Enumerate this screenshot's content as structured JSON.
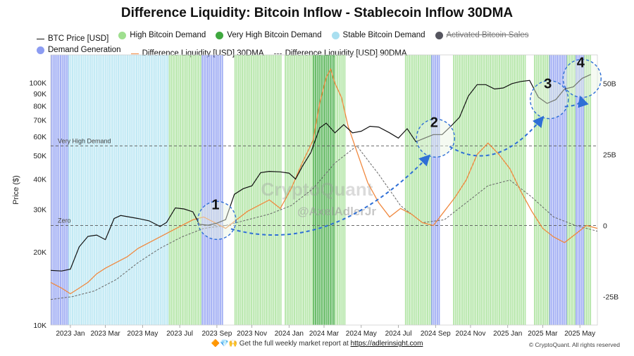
{
  "title": "Difference Liquidity: Bitcoin Inflow - Stablecoin Inflow 30DMA",
  "legend": [
    {
      "label": "BTC Price [USD]",
      "kind": "line",
      "color": "#111111"
    },
    {
      "label": "High Bitcoin Demand",
      "kind": "dot",
      "color": "#9fdf8f"
    },
    {
      "label": "Very High Bitcoin Demand",
      "kind": "dot",
      "color": "#3fa83f"
    },
    {
      "label": "Stable Bitcoin Demand",
      "kind": "dot",
      "color": "#a9dff0"
    },
    {
      "label": "Activated Bitcoin Sales",
      "kind": "dot",
      "color": "#55555f",
      "struck": true
    },
    {
      "label": "Demand Generation",
      "kind": "dot",
      "color": "#8c9cf2"
    },
    {
      "label": "Difference Liquidity [USD] 30DMA",
      "kind": "line",
      "color": "#f0883e"
    },
    {
      "label": "Difference Liquidity [USD] 90DMA",
      "kind": "dash",
      "color": "#666666"
    }
  ],
  "footer": {
    "icons": "🔶💎🙌",
    "text": "Get the full weekly market report at",
    "link": "https://adlerinsight.com"
  },
  "copyright": "© CryptoQuant. All rights reserved",
  "watermark": {
    "main": "CryptoQuant",
    "handle": "@AxelAdlerJr"
  },
  "chart_data": {
    "type": "line",
    "xlabel": "",
    "ylabel": "Price ($)",
    "y_scale": "log",
    "ylim": [
      10000,
      130000
    ],
    "y_ticks": [
      {
        "value": 10000,
        "label": "10K"
      },
      {
        "value": 20000,
        "label": "20K"
      },
      {
        "value": 30000,
        "label": "30K"
      },
      {
        "value": 40000,
        "label": "40K"
      },
      {
        "value": 50000,
        "label": "50K"
      },
      {
        "value": 60000,
        "label": "60K"
      },
      {
        "value": 70000,
        "label": "70K"
      },
      {
        "value": 80000,
        "label": "80K"
      },
      {
        "value": 90000,
        "label": "90K"
      },
      {
        "value": 100000,
        "label": "100K"
      }
    ],
    "y2_range": [
      -35,
      60
    ],
    "y2_ticks": [
      {
        "value": 50,
        "label": "50B"
      },
      {
        "value": 25,
        "label": "25B"
      },
      {
        "value": 0,
        "label": "0"
      },
      {
        "value": -25,
        "label": "-25B"
      }
    ],
    "x_range": [
      2022.95,
      2025.45
    ],
    "x_ticks": [
      {
        "value": 2023.04,
        "label": "2023 Jan"
      },
      {
        "value": 2023.2,
        "label": "2023 Mar"
      },
      {
        "value": 2023.37,
        "label": "2023 May"
      },
      {
        "value": 2023.54,
        "label": "2023 Jul"
      },
      {
        "value": 2023.71,
        "label": "2023 Sep"
      },
      {
        "value": 2023.87,
        "label": "2023 Nov"
      },
      {
        "value": 2024.04,
        "label": "2024 Jan"
      },
      {
        "value": 2024.2,
        "label": "2024 Mar"
      },
      {
        "value": 2024.37,
        "label": "2024 May"
      },
      {
        "value": 2024.54,
        "label": "2024 Jul"
      },
      {
        "value": 2024.71,
        "label": "2024 Sep"
      },
      {
        "value": 2024.87,
        "label": "2024 Nov"
      },
      {
        "value": 2025.04,
        "label": "2025 Jan"
      },
      {
        "value": 2025.2,
        "label": "2025 Mar"
      },
      {
        "value": 2025.37,
        "label": "2025 May"
      }
    ],
    "thresholds": [
      {
        "label": "Very High Demand",
        "y2": 28
      },
      {
        "label": "Zero",
        "y2": 0
      }
    ],
    "regimes": [
      {
        "type": "demand_generation",
        "from": 2022.95,
        "to": 2023.03
      },
      {
        "type": "stable",
        "from": 2023.03,
        "to": 2023.49
      },
      {
        "type": "high",
        "from": 2023.49,
        "to": 2023.64
      },
      {
        "type": "demand_generation",
        "from": 2023.64,
        "to": 2023.74
      },
      {
        "type": "high",
        "from": 2023.79,
        "to": 2024.0
      },
      {
        "type": "high",
        "from": 2024.02,
        "to": 2024.15
      },
      {
        "type": "very_high",
        "from": 2024.15,
        "to": 2024.25
      },
      {
        "type": "high",
        "from": 2024.25,
        "to": 2024.3
      },
      {
        "type": "high",
        "from": 2024.57,
        "to": 2024.69
      },
      {
        "type": "demand_generation",
        "from": 2024.69,
        "to": 2024.73
      },
      {
        "type": "high",
        "from": 2024.79,
        "to": 2025.12
      },
      {
        "type": "high",
        "from": 2025.16,
        "to": 2025.23
      },
      {
        "type": "demand_generation",
        "from": 2025.23,
        "to": 2025.31
      },
      {
        "type": "high",
        "from": 2025.31,
        "to": 2025.35
      },
      {
        "type": "demand_generation",
        "from": 2025.35,
        "to": 2025.39
      },
      {
        "type": "high",
        "from": 2025.39,
        "to": 2025.42
      }
    ],
    "series": [
      {
        "name": "BTC Price [USD]",
        "axis": "left",
        "x": [
          2022.95,
          2023.0,
          2023.04,
          2023.08,
          2023.12,
          2023.16,
          2023.2,
          2023.24,
          2023.27,
          2023.3,
          2023.35,
          2023.4,
          2023.45,
          2023.48,
          2023.52,
          2023.56,
          2023.6,
          2023.63,
          2023.67,
          2023.71,
          2023.75,
          2023.79,
          2023.83,
          2023.87,
          2023.91,
          2023.95,
          2024.0,
          2024.04,
          2024.07,
          2024.1,
          2024.14,
          2024.18,
          2024.21,
          2024.25,
          2024.29,
          2024.33,
          2024.37,
          2024.41,
          2024.45,
          2024.5,
          2024.54,
          2024.58,
          2024.62,
          2024.66,
          2024.7,
          2024.74,
          2024.78,
          2024.82,
          2024.86,
          2024.9,
          2024.94,
          2024.98,
          2025.02,
          2025.06,
          2025.1,
          2025.14,
          2025.18,
          2025.22,
          2025.26,
          2025.3,
          2025.34,
          2025.38,
          2025.42
        ],
        "values": [
          16800,
          16700,
          17000,
          21000,
          23200,
          23500,
          22500,
          27500,
          28300,
          28000,
          27500,
          26900,
          25500,
          26500,
          30400,
          30100,
          29300,
          26000,
          25800,
          26300,
          27200,
          34600,
          36500,
          37500,
          42500,
          43000,
          42800,
          42300,
          40000,
          45000,
          51500,
          65000,
          68000,
          62000,
          67000,
          62000,
          63000,
          66000,
          65500,
          62000,
          59000,
          64500,
          57000,
          59000,
          61000,
          61000,
          66000,
          72000,
          88000,
          98000,
          98000,
          94000,
          95000,
          99000,
          101000,
          102000,
          87000,
          82000,
          85000,
          94000,
          96000,
          104000,
          108000
        ]
      },
      {
        "name": "Difference Liquidity [USD] 30DMA",
        "axis": "right",
        "x": [
          2022.95,
          2023.0,
          2023.04,
          2023.08,
          2023.12,
          2023.16,
          2023.2,
          2023.25,
          2023.3,
          2023.35,
          2023.4,
          2023.45,
          2023.5,
          2023.55,
          2023.6,
          2023.65,
          2023.7,
          2023.75,
          2023.8,
          2023.85,
          2023.9,
          2023.95,
          2024.0,
          2024.05,
          2024.1,
          2024.15,
          2024.18,
          2024.21,
          2024.23,
          2024.25,
          2024.28,
          2024.31,
          2024.35,
          2024.4,
          2024.45,
          2024.5,
          2024.55,
          2024.6,
          2024.65,
          2024.7,
          2024.75,
          2024.8,
          2024.85,
          2024.9,
          2024.95,
          2025.0,
          2025.05,
          2025.1,
          2025.15,
          2025.2,
          2025.25,
          2025.3,
          2025.35,
          2025.4,
          2025.45
        ],
        "values": [
          -20,
          -22,
          -24,
          -22,
          -20,
          -17,
          -15,
          -13,
          -11,
          -8,
          -6,
          -4,
          -2,
          0,
          2,
          3,
          1,
          -1,
          2,
          5,
          7,
          9,
          6,
          13,
          22,
          30,
          43,
          52,
          55,
          50,
          45,
          35,
          26,
          15,
          8,
          3,
          6,
          4,
          1,
          0,
          5,
          10,
          16,
          25,
          29,
          25,
          20,
          12,
          5,
          -1,
          -4,
          -6,
          -3,
          0,
          -1
        ]
      },
      {
        "name": "Difference Liquidity [USD] 90DMA",
        "axis": "right",
        "x": [
          2022.95,
          2023.05,
          2023.15,
          2023.25,
          2023.35,
          2023.45,
          2023.55,
          2023.65,
          2023.75,
          2023.85,
          2023.95,
          2024.05,
          2024.15,
          2024.25,
          2024.35,
          2024.45,
          2024.55,
          2024.65,
          2024.75,
          2024.85,
          2024.95,
          2025.05,
          2025.15,
          2025.25,
          2025.35,
          2025.45
        ],
        "values": [
          -26,
          -25,
          -23,
          -19,
          -13,
          -8,
          -4,
          -1,
          0,
          2,
          4,
          7,
          13,
          22,
          28,
          18,
          7,
          1,
          2,
          8,
          14,
          16,
          10,
          3,
          0,
          -2
        ]
      }
    ],
    "annotations": [
      {
        "label": "1",
        "x": 2023.71,
        "price": 27000
      },
      {
        "label": "2",
        "x": 2024.71,
        "price": 59000
      },
      {
        "label": "3",
        "x": 2025.23,
        "price": 85000
      },
      {
        "label": "4",
        "x": 2025.38,
        "price": 104000
      }
    ]
  }
}
